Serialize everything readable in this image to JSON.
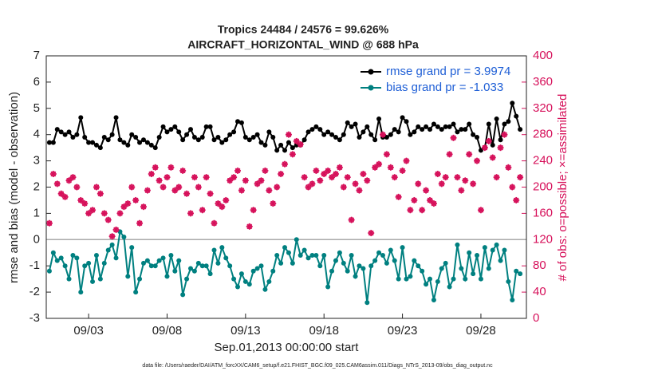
{
  "chart_data": {
    "type": "line",
    "title": "Tropics 24484 / 24576 = 99.626%",
    "subtitle": "AIRCRAFT_HORIZONTAL_WIND @ 688 hPa",
    "x_label": "Sep.01,2013 00:00:00 start",
    "y_label": "rmse and bias (model - observation)",
    "y2_label": "# of obs: o=possible; ×=assimilated",
    "footnote": "data file: /Users/raeder/DAI/ATM_forcXX/CAM6_setup/f.e21.FHIST_BGC.f09_025.CAM6assim.011/Diags_NTrS_2013-09/obs_diag_output.nc",
    "x": [
      -0.5,
      -0.25,
      0,
      0.25,
      0.5,
      0.75,
      1,
      1.25,
      1.5,
      1.75,
      2,
      2.25,
      2.5,
      2.75,
      3,
      3.25,
      3.5,
      3.75,
      4,
      4.25,
      4.5,
      4.75,
      5,
      5.25,
      5.5,
      5.75,
      6,
      6.25,
      6.5,
      6.75,
      7,
      7.25,
      7.5,
      7.75,
      8,
      8.25,
      8.5,
      8.75,
      9,
      9.25,
      9.5,
      9.75,
      10,
      10.25,
      10.5,
      10.75,
      11,
      11.25,
      11.5,
      11.75,
      12,
      12.25,
      12.5,
      12.75,
      13,
      13.25,
      13.5,
      13.75,
      14,
      14.25,
      14.5,
      14.75,
      15,
      15.25,
      15.5,
      15.75,
      16,
      16.25,
      16.5,
      16.75,
      17,
      17.25,
      17.5,
      17.75,
      18,
      18.25,
      18.5,
      18.75,
      19,
      19.25,
      19.5,
      19.75,
      20,
      20.25,
      20.5,
      20.75,
      21,
      21.25,
      21.5,
      21.75,
      22,
      22.25,
      22.5,
      22.75,
      23,
      23.25,
      23.5,
      23.75,
      24,
      24.25,
      24.5,
      24.75,
      25,
      25.25,
      25.5,
      25.75,
      26,
      26.25,
      26.5,
      26.75,
      27,
      27.25,
      27.5,
      27.75,
      28,
      28.25,
      28.5,
      28.75,
      29,
      29.25,
      29.5
    ],
    "xlim": [
      -0.7,
      29.9
    ],
    "xticks": [
      {
        "value": 2,
        "label": "09/03"
      },
      {
        "value": 7,
        "label": "09/08"
      },
      {
        "value": 12,
        "label": "09/13"
      },
      {
        "value": 17,
        "label": "09/18"
      },
      {
        "value": 22,
        "label": "09/23"
      },
      {
        "value": 27,
        "label": "09/28"
      }
    ],
    "ylim": [
      -3,
      7
    ],
    "yticks": [
      -3,
      -2,
      -1,
      0,
      1,
      2,
      3,
      4,
      5,
      6,
      7
    ],
    "y2lim": [
      0,
      400
    ],
    "y2ticks": [
      0,
      40,
      80,
      120,
      160,
      200,
      240,
      280,
      320,
      360,
      400
    ],
    "hline": 0,
    "legend": "upper right",
    "series": [
      {
        "name": "rmse grand pr = 3.9974",
        "color": "#000000",
        "values": [
          3.7,
          3.7,
          4.2,
          4.1,
          4.0,
          4.1,
          3.9,
          4.0,
          4.65,
          3.9,
          3.7,
          3.7,
          3.6,
          3.5,
          3.9,
          3.8,
          4.0,
          4.65,
          3.8,
          3.7,
          3.6,
          4.0,
          3.9,
          3.7,
          3.8,
          3.7,
          3.6,
          3.5,
          3.9,
          4.3,
          4.1,
          4.2,
          4.3,
          4.1,
          3.8,
          4.0,
          4.2,
          3.9,
          3.8,
          3.9,
          4.3,
          4.3,
          3.8,
          3.9,
          3.7,
          3.8,
          4.0,
          4.1,
          4.5,
          4.45,
          3.9,
          3.8,
          3.9,
          4.0,
          3.7,
          3.6,
          4.1,
          3.9,
          3.4,
          3.6,
          3.4,
          3.7,
          3.5,
          3.6,
          3.6,
          3.8,
          4.1,
          4.2,
          4.3,
          4.2,
          4.0,
          4.1,
          4.0,
          3.9,
          3.8,
          4.0,
          4.45,
          4.3,
          4.4,
          3.9,
          4.1,
          4.3,
          4.0,
          3.8,
          4.6,
          3.9,
          3.9,
          4.0,
          4.2,
          4.1,
          4.65,
          4.5,
          4.0,
          4.1,
          4.3,
          4.2,
          4.3,
          4.2,
          4.4,
          4.3,
          4.2,
          4.3,
          4.3,
          4.4,
          4.1,
          4.2,
          4.2,
          4.4,
          4.0,
          3.9,
          3.4,
          3.5,
          4.4,
          3.6,
          4.6,
          3.8,
          4.4,
          4.5,
          5.2,
          4.7,
          4.2
        ]
      },
      {
        "name": "bias grand pr = -1.033",
        "color": "#008080",
        "values": [
          -1.2,
          -0.5,
          -0.8,
          -0.7,
          -1.0,
          -1.5,
          -0.6,
          -0.7,
          -2.0,
          -1.0,
          -0.9,
          -1.6,
          -0.6,
          -1.5,
          -0.9,
          -0.4,
          -0.2,
          -0.7,
          0.3,
          0.1,
          -1.4,
          -0.3,
          -2.0,
          -1.5,
          -0.9,
          -0.8,
          -1.0,
          -1.0,
          -0.8,
          -0.7,
          -1.4,
          -0.6,
          -1.2,
          -0.8,
          -2.1,
          -1.5,
          -1.1,
          -1.2,
          -0.9,
          -1.0,
          -1.0,
          -1.3,
          -0.4,
          -0.9,
          -0.3,
          -0.7,
          -1.0,
          -1.5,
          -1.8,
          -1.3,
          -1.6,
          -1.7,
          -1.2,
          -1.1,
          -1.0,
          -1.9,
          -1.6,
          -1.2,
          -0.6,
          -0.9,
          -0.3,
          -0.5,
          -0.9,
          0.0,
          -0.6,
          -0.4,
          -0.7,
          -0.6,
          -0.6,
          -1.0,
          -0.6,
          -1.8,
          -1.2,
          -0.8,
          -0.5,
          -0.9,
          -1.2,
          -0.6,
          -1.4,
          -1.0,
          -1.1,
          -2.4,
          -1.0,
          -0.8,
          -0.5,
          -0.6,
          -0.9,
          -0.4,
          -0.8,
          -1.5,
          -0.3,
          -1.5,
          -1.4,
          -0.8,
          -1.0,
          -1.2,
          -1.7,
          -1.5,
          -2.3,
          -1.6,
          -1.1,
          -0.9,
          -1.8,
          -1.5,
          -0.2,
          -1.1,
          -1.5,
          -0.5,
          -1.3,
          -0.6,
          -1.5,
          -0.3,
          -1.1,
          -0.4,
          -0.2,
          -0.8,
          -0.4,
          -1.6,
          -2.3,
          -1.2,
          -1.3
        ]
      },
      {
        "axis": "y2",
        "color": "#d6105a",
        "marker": "asterisk",
        "values": [
          145,
          220,
          205,
          190,
          185,
          210,
          215,
          200,
          180,
          175,
          160,
          165,
          200,
          190,
          160,
          150,
          125,
          135,
          160,
          170,
          175,
          200,
          180,
          145,
          170,
          195,
          220,
          230,
          210,
          200,
          215,
          230,
          195,
          200,
          225,
          190,
          160,
          215,
          200,
          165,
          215,
          190,
          145,
          175,
          170,
          180,
          210,
          215,
          225,
          195,
          210,
          140,
          165,
          205,
          210,
          225,
          195,
          175,
          200,
          220,
          235,
          280,
          250,
          270,
          265,
          215,
          200,
          205,
          225,
          210,
          220,
          225,
          215,
          220,
          230,
          200,
          215,
          150,
          205,
          195,
          220,
          210,
          130,
          230,
          235,
          280,
          250,
          230,
          215,
          185,
          225,
          240,
          165,
          180,
          205,
          165,
          195,
          180,
          175,
          220,
          205,
          215,
          250,
          275,
          215,
          195,
          210,
          250,
          205,
          240,
          165,
          260,
          270,
          245,
          215,
          260,
          280,
          230,
          200,
          180,
          215
        ]
      }
    ]
  }
}
